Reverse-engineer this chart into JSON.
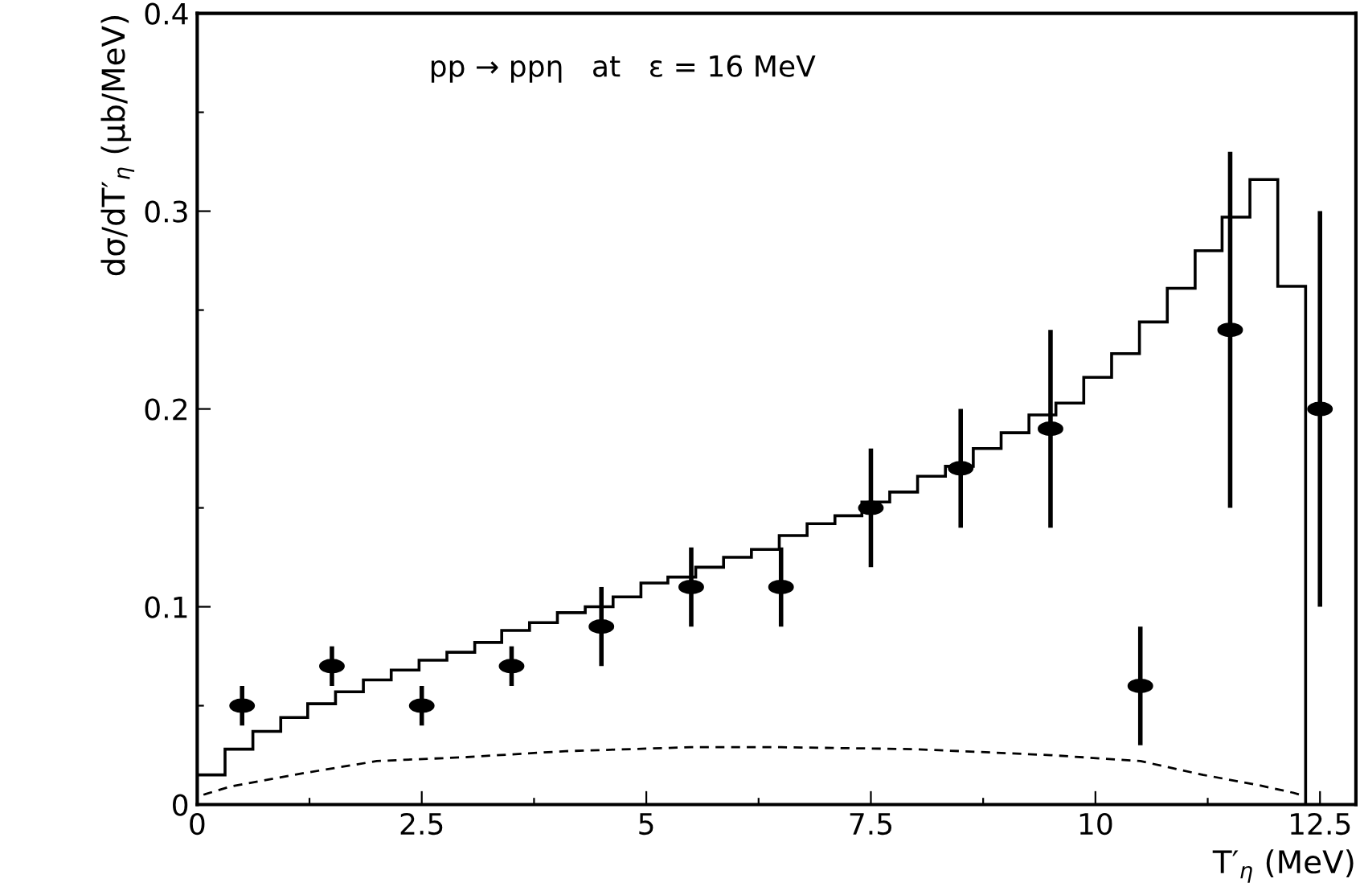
{
  "chart_data": {
    "type": "histogram",
    "xlabel": "T′$_{η}$ (MeV)",
    "ylabel": "dσ/dT′$_{η}$ (μb/MeV)",
    "annotations": [
      "pp → ppη   at   ε = 16 MeV"
    ],
    "bins": [
      0,
      0.31,
      0.62,
      0.93,
      1.23,
      1.54,
      1.85,
      2.16,
      2.47,
      2.78,
      3.09,
      3.39,
      3.7,
      4.01,
      4.32,
      4.63,
      4.94,
      5.24,
      5.55,
      5.86,
      6.17,
      6.48,
      6.79,
      7.1,
      7.4,
      7.71,
      8.02,
      8.33,
      8.64,
      8.95,
      9.26,
      9.56,
      9.87,
      10.18,
      10.49,
      10.8,
      11.11,
      11.41,
      11.72,
      12.03,
      12.34
    ],
    "values": [
      0.015,
      0.028,
      0.037,
      0.044,
      0.051,
      0.057,
      0.063,
      0.068,
      0.073,
      0.077,
      0.082,
      0.088,
      0.092,
      0.097,
      0.1,
      0.105,
      0.112,
      0.115,
      0.12,
      0.125,
      0.129,
      0.136,
      0.142,
      0.146,
      0.153,
      0.158,
      0.166,
      0.171,
      0.18,
      0.188,
      0.197,
      0.203,
      0.216,
      0.228,
      0.244,
      0.261,
      0.28,
      0.297,
      0.316,
      0.262
    ],
    "color": "#000000",
    "series": [
      {
        "type": "line",
        "line_style": "dashed",
        "color": "#000000",
        "x": [
          0.07,
          0.36,
          1.2,
          2.0,
          3.0,
          4.1,
          5.5,
          6.5,
          8.0,
          9.5,
          10.5,
          11.2,
          11.8,
          12.2,
          12.35
        ],
        "values": [
          0.005,
          0.009,
          0.016,
          0.022,
          0.024,
          0.027,
          0.029,
          0.029,
          0.028,
          0.025,
          0.022,
          0.015,
          0.01,
          0.006,
          0.004
        ]
      },
      {
        "type": "scatter",
        "marker": "circle",
        "color": "#000000",
        "x": [
          0.5,
          1.5,
          2.5,
          3.5,
          4.5,
          5.5,
          6.5,
          7.5,
          8.5,
          9.5,
          10.5,
          11.5,
          12.5
        ],
        "values": [
          0.05,
          0.07,
          0.05,
          0.07,
          0.09,
          0.11,
          0.11,
          0.15,
          0.17,
          0.19,
          0.06,
          0.24,
          0.2
        ],
        "errors": [
          0.01,
          0.01,
          0.01,
          0.01,
          0.02,
          0.02,
          0.02,
          0.03,
          0.03,
          0.05,
          0.03,
          0.09,
          0.1
        ]
      }
    ],
    "xlim": [
      0,
      12.9
    ],
    "ylim": [
      0,
      0.4
    ],
    "xticks": [
      0,
      {
        "value": 1.25,
        "label": null
      },
      2.5,
      {
        "value": 3.75,
        "label": null
      },
      5,
      {
        "value": 6.25,
        "label": null
      },
      7.5,
      {
        "value": 8.75,
        "label": null
      },
      10,
      {
        "value": 11.25,
        "label": null
      },
      12.5
    ],
    "yticks": [
      0,
      {
        "value": 0.05,
        "label": null
      },
      0.1,
      {
        "value": 0.15,
        "label": null
      },
      0.2,
      {
        "value": 0.25,
        "label": null
      },
      0.3,
      {
        "value": 0.35,
        "label": null
      },
      0.4
    ],
    "grid": false,
    "legend": false
  }
}
